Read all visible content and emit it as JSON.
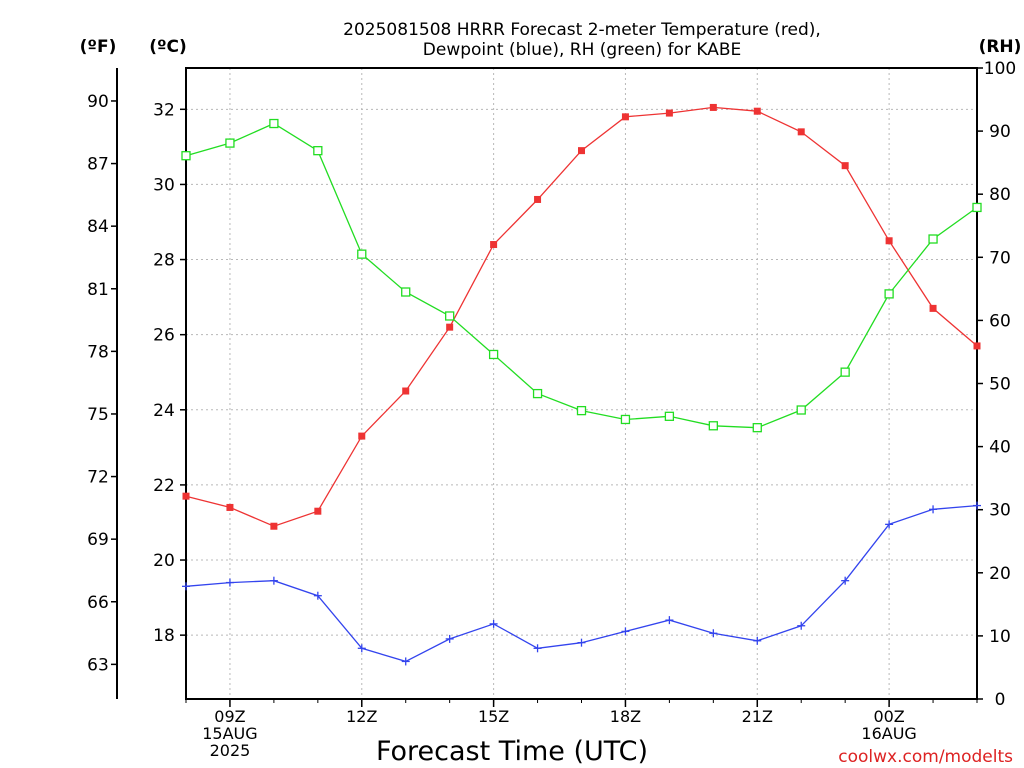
{
  "chart_data": {
    "type": "line",
    "title": "2025081508 HRRR Forecast 2-meter Temperature (red),",
    "subtitle": "Dewpoint (blue), RH (green) for KABE",
    "xlabel": "Forecast Time (UTC)",
    "watermark": "coolwx.com/modelts",
    "unit_labels": {
      "fahrenheit": "(ºF)",
      "celsius": "(ºC)",
      "rh": "(RH)"
    },
    "x": [
      "2025-08-15T08Z",
      "2025-08-15T09Z",
      "2025-08-15T10Z",
      "2025-08-15T11Z",
      "2025-08-15T12Z",
      "2025-08-15T13Z",
      "2025-08-15T14Z",
      "2025-08-15T15Z",
      "2025-08-15T16Z",
      "2025-08-15T17Z",
      "2025-08-15T18Z",
      "2025-08-15T19Z",
      "2025-08-15T20Z",
      "2025-08-15T21Z",
      "2025-08-15T22Z",
      "2025-08-15T23Z",
      "2025-08-16T00Z",
      "2025-08-16T01Z",
      "2025-08-16T02Z"
    ],
    "x_ticks": [
      {
        "x": "2025-08-15T09Z",
        "lines": [
          "09Z",
          "15AUG",
          "2025"
        ]
      },
      {
        "x": "2025-08-15T12Z",
        "lines": [
          "12Z"
        ]
      },
      {
        "x": "2025-08-15T15Z",
        "lines": [
          "15Z"
        ]
      },
      {
        "x": "2025-08-15T18Z",
        "lines": [
          "18Z"
        ]
      },
      {
        "x": "2025-08-15T21Z",
        "lines": [
          "21Z"
        ]
      },
      {
        "x": "2025-08-16T00Z",
        "lines": [
          "00Z",
          "16AUG"
        ]
      }
    ],
    "series": [
      {
        "key": "temperature",
        "axis": "celsius",
        "color": "#ee3333",
        "marker": "filled-square",
        "values": [
          21.7,
          21.4,
          20.9,
          21.3,
          23.3,
          24.5,
          26.2,
          28.4,
          29.6,
          30.9,
          31.8,
          31.9,
          32.05,
          31.95,
          31.4,
          30.5,
          28.5,
          26.7,
          25.7
        ]
      },
      {
        "key": "dewpoint",
        "axis": "celsius",
        "color": "#3344ee",
        "marker": "plus",
        "values": [
          19.3,
          19.4,
          19.45,
          19.05,
          17.65,
          17.3,
          17.9,
          18.3,
          17.65,
          17.8,
          18.1,
          18.4,
          18.05,
          17.85,
          18.25,
          19.45,
          20.95,
          21.35,
          21.45
        ]
      },
      {
        "key": "rh",
        "axis": "rh",
        "color": "#22dd22",
        "marker": "open-square",
        "values": [
          86.1,
          88.1,
          91.2,
          86.9,
          70.5,
          64.5,
          60.7,
          54.6,
          48.4,
          45.7,
          44.3,
          44.8,
          43.3,
          43.0,
          45.8,
          51.8,
          64.2,
          72.9,
          77.9
        ]
      }
    ],
    "axes": {
      "celsius": {
        "ticks": [
          18,
          20,
          22,
          24,
          26,
          28,
          30,
          32
        ],
        "range": [
          16.3,
          33.1
        ]
      },
      "fahrenheit": {
        "ticks": [
          63,
          66,
          69,
          72,
          75,
          78,
          81,
          84,
          87,
          90
        ]
      },
      "rh": {
        "ticks": [
          0,
          10,
          20,
          30,
          40,
          50,
          60,
          70,
          80,
          90,
          100
        ],
        "range": [
          0,
          100
        ]
      }
    },
    "grid": true
  }
}
